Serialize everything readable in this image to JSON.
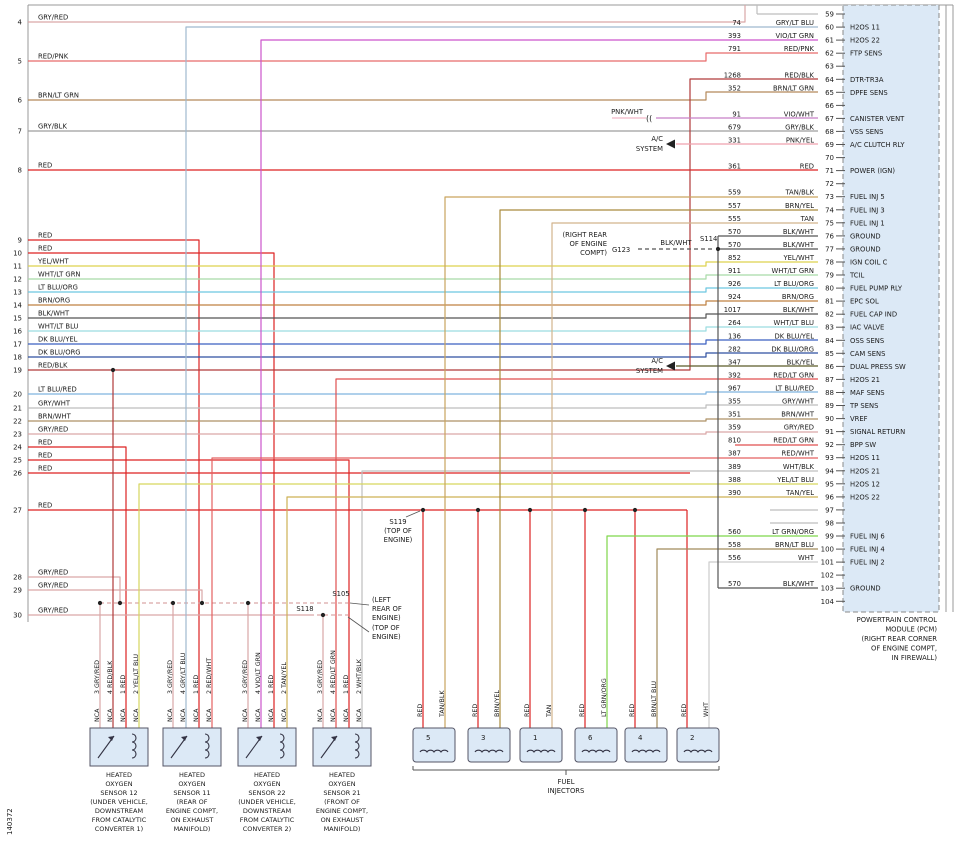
{
  "wire_colors": {
    "GRY/RED": "#d9a6a6",
    "RED/PNK": "#e86a6a",
    "BRN/LT GRN": "#b5895a",
    "GRY/BLK": "#9e9e9e",
    "RED": "#dd2222",
    "YEL/WHT": "#ddd24e",
    "WHT/LT GRN": "#a8daa8",
    "LT BLU/ORG": "#6cc6e0",
    "BRN/ORG": "#bf8040",
    "BLK/WHT": "#555555",
    "WHT/LT BLU": "#9adce0",
    "DK BLU/YEL": "#3a5fc0",
    "DK BLU/ORG": "#2f4fa0",
    "RED/BLK": "#b03a3a",
    "LT BLU/RED": "#7fb3df",
    "GRY/WHT": "#bdbdbd",
    "BRN/WHT": "#ad9166",
    "TAN/BLK": "#c9a45e",
    "BRN/YEL": "#a98b3d",
    "TAN": "#d2b48c",
    "VIO/WHT": "#c77fc7",
    "PNK/YEL": "#efa0ae",
    "PNK/WHT": "#f2b8c6",
    "VIO/LT GRN": "#cc55cc",
    "GRY/LT BLU": "#9fb9cf",
    "RED/WHT": "#e46060",
    "TAN/YEL": "#cdb055",
    "RED/LT GRN": "#e04f4f",
    "WHT/BLK": "#bfbfbf",
    "YEL/LT BLU": "#d6d65e",
    "LT GRN/ORG": "#7ed64a",
    "BRN/LT BLU": "#a08a5a",
    "WHT": "#cccccc",
    "BLK/YEL": "#5a5a28"
  },
  "left_rows": [
    {
      "num": "4",
      "color": "GRY/RED"
    },
    {
      "num": "5",
      "color": "RED/PNK"
    },
    {
      "num": "6",
      "color": "BRN/LT GRN"
    },
    {
      "num": "7",
      "color": "GRY/BLK"
    },
    {
      "num": "8",
      "color": "RED"
    },
    {
      "num": "9",
      "color": "RED"
    },
    {
      "num": "10",
      "color": "RED"
    },
    {
      "num": "11",
      "color": "YEL/WHT"
    },
    {
      "num": "12",
      "color": "WHT/LT GRN"
    },
    {
      "num": "13",
      "color": "LT BLU/ORG"
    },
    {
      "num": "14",
      "color": "BRN/ORG"
    },
    {
      "num": "15",
      "color": "BLK/WHT"
    },
    {
      "num": "16",
      "color": "WHT/LT BLU"
    },
    {
      "num": "17",
      "color": "DK BLU/YEL"
    },
    {
      "num": "18",
      "color": "DK BLU/ORG"
    },
    {
      "num": "19",
      "color": "RED/BLK"
    },
    {
      "num": "20",
      "color": "LT BLU/RED"
    },
    {
      "num": "21",
      "color": "GRY/WHT"
    },
    {
      "num": "22",
      "color": "BRN/WHT"
    },
    {
      "num": "23",
      "color": "GRY/RED"
    },
    {
      "num": "24",
      "color": "RED"
    },
    {
      "num": "25",
      "color": "RED"
    },
    {
      "num": "26",
      "color": "RED"
    },
    {
      "num": "27",
      "color": "RED"
    },
    {
      "num": "28",
      "color": "GRY/RED"
    },
    {
      "num": "29",
      "color": "GRY/RED"
    },
    {
      "num": "30",
      "color": "GRY/RED"
    }
  ],
  "pcm": {
    "label_lines": [
      "POWERTRAIN CONTROL",
      "MODULE (PCM)",
      "(RIGHT REAR CORNER",
      "OF ENGINE COMPT,",
      "IN FIREWALL)"
    ],
    "pins": [
      {
        "pin": "59",
        "circuit": "",
        "color": "",
        "signal": ""
      },
      {
        "pin": "60",
        "circuit": "74",
        "color": "GRY/LT BLU",
        "signal": "H2OS 11"
      },
      {
        "pin": "61",
        "circuit": "393",
        "color": "VIO/LT GRN",
        "signal": "H2OS 22"
      },
      {
        "pin": "62",
        "circuit": "791",
        "color": "RED/PNK",
        "signal": "FTP SENS"
      },
      {
        "pin": "63",
        "circuit": "",
        "color": "",
        "signal": ""
      },
      {
        "pin": "64",
        "circuit": "1268",
        "color": "RED/BLK",
        "signal": "DTR-TR3A"
      },
      {
        "pin": "65",
        "circuit": "352",
        "color": "BRN/LT GRN",
        "signal": "DPFE SENS"
      },
      {
        "pin": "66",
        "circuit": "",
        "color": "",
        "signal": ""
      },
      {
        "pin": "67",
        "circuit": "91",
        "color": "VIO/WHT",
        "signal": "CANISTER VENT"
      },
      {
        "pin": "68",
        "circuit": "679",
        "color": "GRY/BLK",
        "signal": "VSS SENS"
      },
      {
        "pin": "69",
        "circuit": "331",
        "color": "PNK/YEL",
        "signal": "A/C CLUTCH RLY"
      },
      {
        "pin": "70",
        "circuit": "",
        "color": "",
        "signal": ""
      },
      {
        "pin": "71",
        "circuit": "361",
        "color": "RED",
        "signal": "POWER (IGN)"
      },
      {
        "pin": "72",
        "circuit": "",
        "color": "",
        "signal": ""
      },
      {
        "pin": "73",
        "circuit": "559",
        "color": "TAN/BLK",
        "signal": "FUEL INJ 5"
      },
      {
        "pin": "74",
        "circuit": "557",
        "color": "BRN/YEL",
        "signal": "FUEL INJ 3"
      },
      {
        "pin": "75",
        "circuit": "555",
        "color": "TAN",
        "signal": "FUEL INJ 1"
      },
      {
        "pin": "76",
        "circuit": "570",
        "color": "BLK/WHT",
        "signal": "GROUND"
      },
      {
        "pin": "77",
        "circuit": "570",
        "color": "BLK/WHT",
        "signal": "GROUND"
      },
      {
        "pin": "78",
        "circuit": "852",
        "color": "YEL/WHT",
        "signal": "IGN COIL C"
      },
      {
        "pin": "79",
        "circuit": "911",
        "color": "WHT/LT GRN",
        "signal": "TCIL"
      },
      {
        "pin": "80",
        "circuit": "926",
        "color": "LT BLU/ORG",
        "signal": "FUEL PUMP RLY"
      },
      {
        "pin": "81",
        "circuit": "924",
        "color": "BRN/ORG",
        "signal": "EPC SOL"
      },
      {
        "pin": "82",
        "circuit": "1017",
        "color": "BLK/WHT",
        "signal": "FUEL CAP IND"
      },
      {
        "pin": "83",
        "circuit": "264",
        "color": "WHT/LT BLU",
        "signal": "IAC VALVE"
      },
      {
        "pin": "84",
        "circuit": "136",
        "color": "DK BLU/YEL",
        "signal": "OSS SENS"
      },
      {
        "pin": "85",
        "circuit": "282",
        "color": "DK BLU/ORG",
        "signal": "CAM SENS"
      },
      {
        "pin": "86",
        "circuit": "347",
        "color": "BLK/YEL",
        "signal": "DUAL PRESS SW"
      },
      {
        "pin": "87",
        "circuit": "392",
        "color": "RED/LT GRN",
        "signal": "H2OS 21"
      },
      {
        "pin": "88",
        "circuit": "967",
        "color": "LT BLU/RED",
        "signal": "MAF SENS"
      },
      {
        "pin": "89",
        "circuit": "355",
        "color": "GRY/WHT",
        "signal": "TP SENS"
      },
      {
        "pin": "90",
        "circuit": "351",
        "color": "BRN/WHT",
        "signal": "VREF"
      },
      {
        "pin": "91",
        "circuit": "359",
        "color": "GRY/RED",
        "signal": "SIGNAL RETURN"
      },
      {
        "pin": "92",
        "circuit": "810",
        "color": "RED/LT GRN",
        "signal": "BPP SW"
      },
      {
        "pin": "93",
        "circuit": "387",
        "color": "RED/WHT",
        "signal": "H2OS 11"
      },
      {
        "pin": "94",
        "circuit": "389",
        "color": "WHT/BLK",
        "signal": "H2OS 21"
      },
      {
        "pin": "95",
        "circuit": "388",
        "color": "YEL/LT BLU",
        "signal": "H2OS 12"
      },
      {
        "pin": "96",
        "circuit": "390",
        "color": "TAN/YEL",
        "signal": "H2OS 22"
      },
      {
        "pin": "97",
        "circuit": "",
        "color": "",
        "signal": ""
      },
      {
        "pin": "98",
        "circuit": "",
        "color": "",
        "signal": ""
      },
      {
        "pin": "99",
        "circuit": "560",
        "color": "LT GRN/ORG",
        "signal": "FUEL INJ 6"
      },
      {
        "pin": "100",
        "circuit": "558",
        "color": "BRN/LT BLU",
        "signal": "FUEL INJ 4"
      },
      {
        "pin": "101",
        "circuit": "556",
        "color": "WHT",
        "signal": "FUEL INJ 2"
      },
      {
        "pin": "102",
        "circuit": "",
        "color": "",
        "signal": ""
      },
      {
        "pin": "103",
        "circuit": "570",
        "color": "BLK/WHT",
        "signal": "GROUND"
      },
      {
        "pin": "104",
        "circuit": "",
        "color": "",
        "signal": ""
      }
    ]
  },
  "sensors": [
    {
      "name_lines": [
        "HEATED",
        "OXYGEN",
        "SENSOR 12",
        "(UNDER VEHICLE,",
        "DOWNSTREAM",
        "FROM CATALYTIC",
        "CONVERTER 1)"
      ],
      "wires": [
        {
          "tag": "3 GRY/RED",
          "nca": "NCA"
        },
        {
          "tag": "4 RED/BLK",
          "nca": "NCA"
        },
        {
          "tag": "1 RED",
          "nca": "NCA"
        },
        {
          "tag": "2 YEL/LT BLU",
          "nca": "NCA"
        }
      ]
    },
    {
      "name_lines": [
        "HEATED",
        "OXYGEN",
        "SENSOR 11",
        "(REAR OF",
        "ENGINE COMPT,",
        "ON EXHAUST",
        "MANIFOLD)"
      ],
      "wires": [
        {
          "tag": "3 GRY/RED",
          "nca": "NCA"
        },
        {
          "tag": "4 GRY/LT BLU",
          "nca": "NCA"
        },
        {
          "tag": "1 RED",
          "nca": "NCA"
        },
        {
          "tag": "2 RED/WHT",
          "nca": "NCA"
        }
      ]
    },
    {
      "name_lines": [
        "HEATED",
        "OXYGEN",
        "SENSOR 22",
        "(UNDER VEHICLE,",
        "DOWNSTREAM",
        "FROM CATALYTIC",
        "CONVERTER 2)"
      ],
      "wires": [
        {
          "tag": "3 GRY/RED",
          "nca": "NCA"
        },
        {
          "tag": "4 VIO/LT GRN",
          "nca": "NCA"
        },
        {
          "tag": "1 RED",
          "nca": "NCA"
        },
        {
          "tag": "2 TAN/YEL",
          "nca": "NCA"
        }
      ]
    },
    {
      "name_lines": [
        "HEATED",
        "OXYGEN",
        "SENSOR 21",
        "(FRONT OF",
        "ENGINE COMPT,",
        "ON EXHAUST",
        "MANIFOLD)"
      ],
      "wires": [
        {
          "tag": "3 GRY/RED",
          "nca": "NCA"
        },
        {
          "tag": "4 RED/LT GRN",
          "nca": "NCA"
        },
        {
          "tag": "1 RED",
          "nca": "NCA"
        },
        {
          "tag": "2 WHT/BLK",
          "nca": "NCA"
        }
      ]
    }
  ],
  "injectors": {
    "group_label_lines": [
      "FUEL",
      "INJECTORS"
    ],
    "items": [
      {
        "num": "5",
        "wires": [
          {
            "tag": "RED"
          },
          {
            "tag": "TAN/BLK"
          }
        ]
      },
      {
        "num": "3",
        "wires": [
          {
            "tag": "RED"
          },
          {
            "tag": "BRN/YEL"
          }
        ]
      },
      {
        "num": "1",
        "wires": [
          {
            "tag": "RED"
          },
          {
            "tag": "TAN"
          }
        ]
      },
      {
        "num": "6",
        "wires": [
          {
            "tag": "RED"
          },
          {
            "tag": "LT GRN/ORG"
          }
        ]
      },
      {
        "num": "4",
        "wires": [
          {
            "tag": "RED"
          },
          {
            "tag": "BRN/LT BLU"
          }
        ]
      },
      {
        "num": "2",
        "wires": [
          {
            "tag": "RED"
          },
          {
            "tag": "WHT"
          }
        ]
      }
    ]
  },
  "annotations": {
    "pnk_wht": "PNK/WHT",
    "ac_line1": "A/C",
    "ac_line2": "SYSTEM",
    "g123": "G123",
    "g123_wire": "BLK/WHT",
    "s114": "S114",
    "g123_loc": [
      "(RIGHT REAR",
      "OF ENGINE",
      "COMPT)"
    ],
    "s119": "S119",
    "s119_loc": [
      "(TOP OF",
      "ENGINE)"
    ],
    "s105": "S105",
    "s105_loc": [
      "(LEFT",
      "REAR OF",
      "ENGINE)"
    ],
    "s118": "S118",
    "s118_loc": [
      "(TOP OF",
      "ENGINE)"
    ],
    "diagram_number": "140372"
  }
}
